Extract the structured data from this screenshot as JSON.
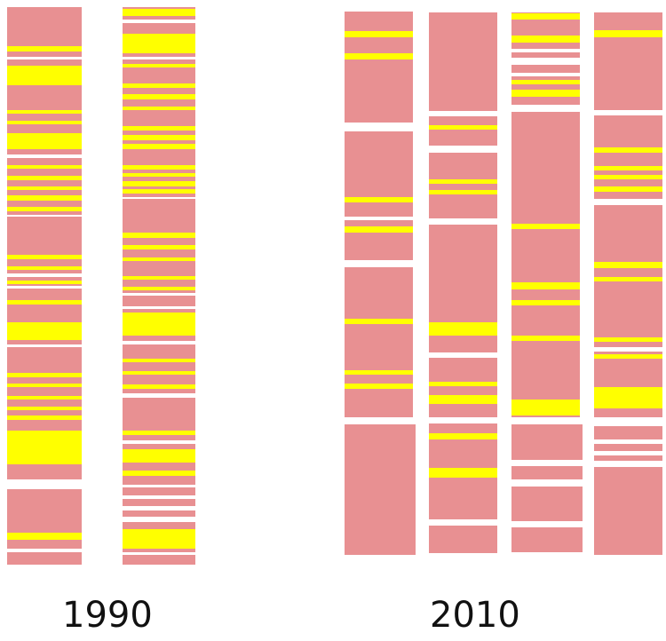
{
  "colors": {
    "block": "#e89092",
    "highlight": "#ffff00",
    "gap": "#ffffff"
  },
  "labels": {
    "left": "1990",
    "right": "2010"
  },
  "groups": [
    {
      "name": "1990",
      "strip_count": 2
    },
    {
      "name": "2010",
      "strip_count": 4
    }
  ]
}
